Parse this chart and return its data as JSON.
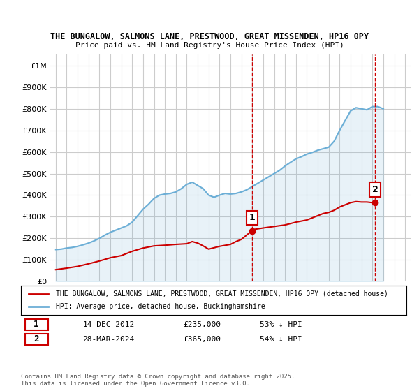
{
  "title1": "THE BUNGALOW, SALMONS LANE, PRESTWOOD, GREAT MISSENDEN, HP16 0PY",
  "title2": "Price paid vs. HM Land Registry's House Price Index (HPI)",
  "hpi_label": "HPI: Average price, detached house, Buckinghamshire",
  "prop_label": "THE BUNGALOW, SALMONS LANE, PRESTWOOD, GREAT MISSENDEN, HP16 0PY (detached house)",
  "hpi_color": "#6baed6",
  "prop_color": "#cc0000",
  "marker_color_1": "#cc0000",
  "marker_color_2": "#cc0000",
  "annotation_box_color": "#cc0000",
  "vline_color": "#cc0000",
  "grid_color": "#cccccc",
  "bg_color": "#ffffff",
  "sale1_date": "14-DEC-2012",
  "sale1_price": 235000,
  "sale1_label": "£235,000",
  "sale1_pct": "53% ↓ HPI",
  "sale1_year": 2012.96,
  "sale2_date": "28-MAR-2024",
  "sale2_price": 365000,
  "sale2_label": "£365,000",
  "sale2_pct": "54% ↓ HPI",
  "sale2_year": 2024.25,
  "footer": "Contains HM Land Registry data © Crown copyright and database right 2025.\nThis data is licensed under the Open Government Licence v3.0.",
  "ylim": [
    0,
    1050000
  ],
  "xlim_left": 1994.5,
  "xlim_right": 2027.5,
  "hpi_years": [
    1995,
    1996,
    1997,
    1998,
    1999,
    2000,
    2001,
    2002,
    2003,
    2004,
    2005,
    2006,
    2007,
    2008,
    2009,
    2010,
    2011,
    2012,
    2013,
    2014,
    2015,
    2016,
    2017,
    2018,
    2019,
    2020,
    2021,
    2022,
    2023,
    2024,
    2025
  ],
  "hpi_values": [
    145000,
    152000,
    160000,
    175000,
    195000,
    225000,
    250000,
    290000,
    330000,
    385000,
    400000,
    415000,
    450000,
    430000,
    390000,
    410000,
    405000,
    430000,
    450000,
    480000,
    510000,
    540000,
    580000,
    600000,
    610000,
    640000,
    730000,
    800000,
    790000,
    820000,
    800000
  ],
  "prop_years": [
    1995,
    1997,
    1999,
    2001,
    2003,
    2005,
    2007,
    2009,
    2011,
    2012.96,
    2013,
    2015,
    2017,
    2019,
    2021,
    2023,
    2024.25
  ],
  "prop_values": [
    55000,
    65000,
    75000,
    90000,
    105000,
    120000,
    175000,
    145000,
    175000,
    235000,
    240000,
    255000,
    290000,
    310000,
    330000,
    365000,
    365000
  ]
}
